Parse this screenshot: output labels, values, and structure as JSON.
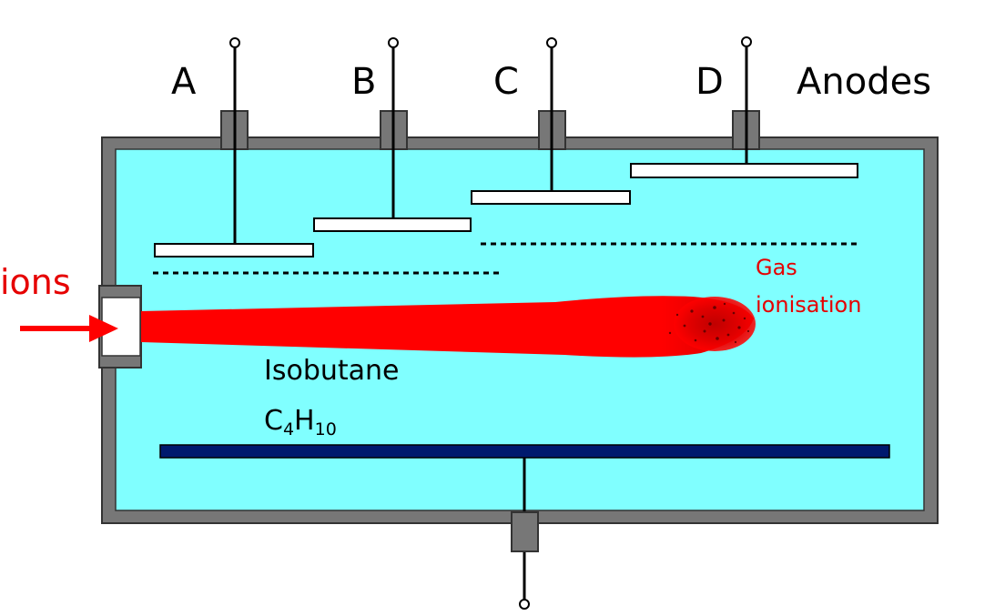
{
  "anodes": {
    "a": "A",
    "b": "B",
    "c": "C",
    "d": "D",
    "title": "Anodes"
  },
  "beam": {
    "label": "ions"
  },
  "gas": {
    "name": "Isobutane",
    "formula_c": "C",
    "formula_c_sub": "4",
    "formula_h": "H",
    "formula_h_sub": "10"
  },
  "ionisation": {
    "line1": "Gas",
    "line2": "ionisation"
  },
  "colors": {
    "chamber_wall": "#777777",
    "gas_fill": "#80ffff",
    "beam": "#ff0000",
    "cathode": "#001a6e",
    "anode_plate": "#ffffff",
    "label_red": "#e60000"
  }
}
